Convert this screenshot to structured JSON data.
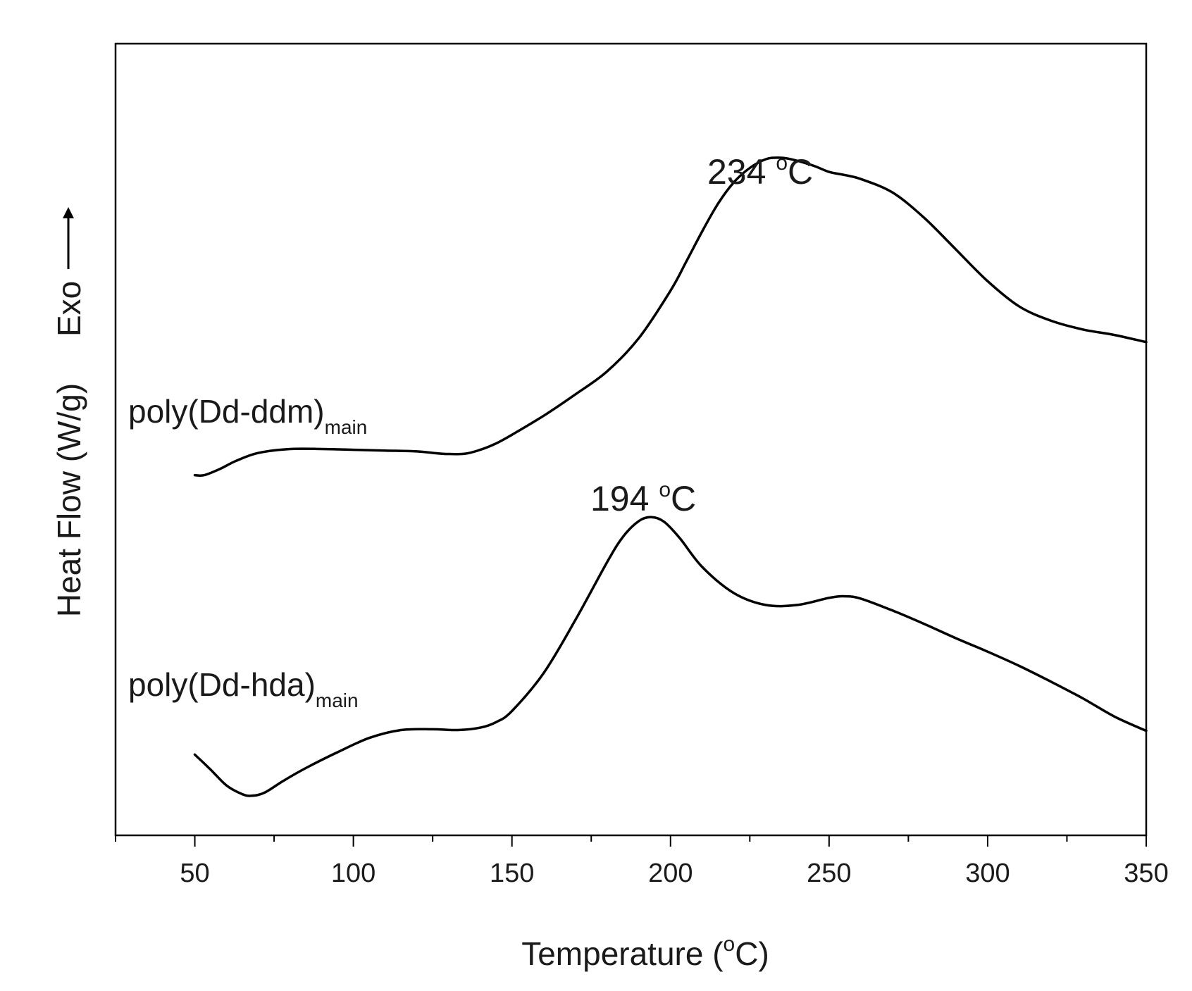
{
  "chart_data": {
    "type": "line",
    "title": "",
    "xlabel": {
      "prefix": "Temperature (",
      "sup": "o",
      "suffix": "C)"
    },
    "ylabel": {
      "text": "Heat Flow (W/g)",
      "direction": "Exo",
      "direction_icon": "arrow-up-icon"
    },
    "xlim": [
      25,
      350
    ],
    "ylim": [
      0,
      100
    ],
    "yticks_shown": false,
    "grid": false,
    "x_ticks": [
      50,
      100,
      150,
      200,
      250,
      300,
      350
    ],
    "x_tick_labels": [
      "50",
      "100",
      "150",
      "200",
      "250",
      "300",
      "350"
    ],
    "series": [
      {
        "label": {
          "text": "poly(Dd-ddm)",
          "sub": "main"
        },
        "color": "#000000",
        "x": [
          50,
          53,
          58,
          63,
          70,
          80,
          90,
          100,
          110,
          120,
          128,
          135,
          140,
          145,
          150,
          160,
          170,
          180,
          190,
          200,
          205,
          210,
          215,
          220,
          225,
          230,
          234,
          238,
          245,
          250,
          255,
          260,
          270,
          280,
          290,
          300,
          310,
          320,
          330,
          340,
          350
        ],
        "y": [
          45.5,
          45.5,
          46.3,
          47.3,
          48.3,
          48.8,
          48.8,
          48.7,
          48.6,
          48.5,
          48.2,
          48.2,
          48.7,
          49.5,
          50.6,
          53.0,
          55.7,
          58.6,
          62.8,
          68.8,
          72.5,
          76.3,
          79.8,
          82.5,
          84.3,
          85.4,
          85.6,
          85.4,
          84.6,
          83.8,
          83.4,
          82.9,
          81.2,
          78.0,
          74.0,
          70.0,
          66.8,
          65.0,
          63.9,
          63.2,
          62.3
        ]
      },
      {
        "label": {
          "text": "poly(Dd-hda)",
          "sub": "main"
        },
        "color": "#000000",
        "x": [
          50,
          55,
          60,
          65,
          68,
          72,
          78,
          85,
          95,
          105,
          115,
          125,
          133,
          140,
          145,
          150,
          160,
          170,
          180,
          185,
          190,
          194,
          198,
          203,
          210,
          220,
          230,
          240,
          250,
          255,
          260,
          270,
          280,
          290,
          300,
          310,
          320,
          330,
          340,
          350
        ],
        "y": [
          10.2,
          8.3,
          6.3,
          5.2,
          5.0,
          5.4,
          6.9,
          8.5,
          10.5,
          12.3,
          13.3,
          13.4,
          13.3,
          13.6,
          14.3,
          15.7,
          20.5,
          27.2,
          34.5,
          37.7,
          39.7,
          40.2,
          39.6,
          37.5,
          33.9,
          30.6,
          29.1,
          29.1,
          30.0,
          30.2,
          29.9,
          28.4,
          26.7,
          24.9,
          23.2,
          21.4,
          19.4,
          17.3,
          15.0,
          13.2
        ]
      }
    ],
    "annotations": [
      {
        "text": "234 ",
        "sup": "o",
        "suffix": "C",
        "x": 234,
        "y": 85.6
      },
      {
        "text": "194 ",
        "sup": "o",
        "suffix": "C",
        "x": 194,
        "y": 40.2
      }
    ]
  }
}
